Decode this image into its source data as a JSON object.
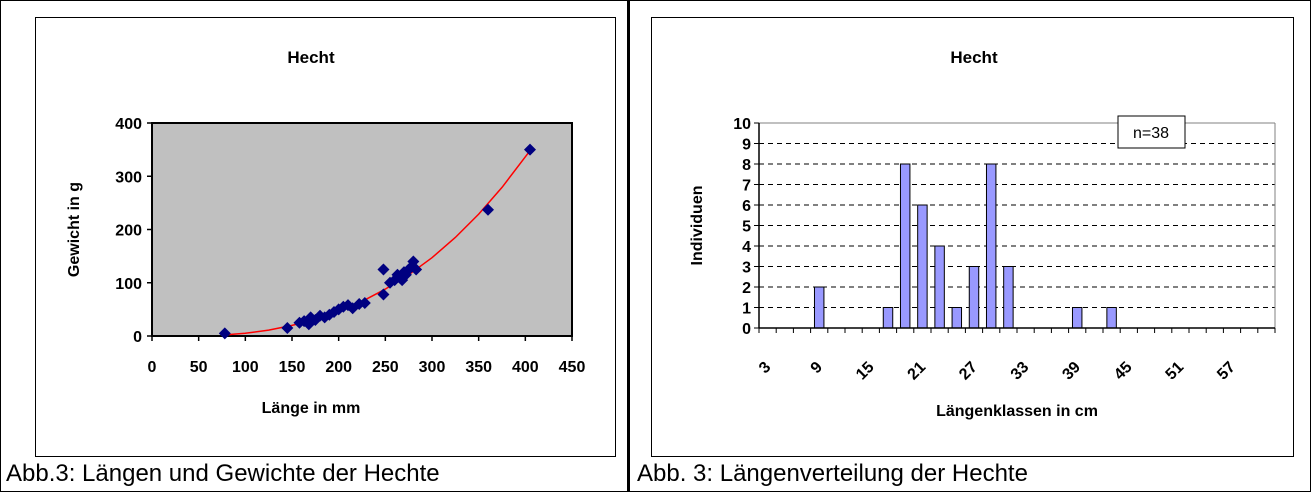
{
  "captions": {
    "left": "Abb.3: Längen und Gewichte der Hechte",
    "right": "Abb. 3: Längenverteilung der Hechte"
  },
  "chart_data": [
    {
      "type": "scatter",
      "title": "Hecht",
      "xlabel": "Länge in mm",
      "ylabel": "Gewicht in g",
      "xlim": [
        0,
        450
      ],
      "ylim": [
        0,
        400
      ],
      "xticks": [
        "0",
        "50",
        "100",
        "150",
        "200",
        "250",
        "300",
        "350",
        "400",
        "450"
      ],
      "yticks": [
        "0",
        "100",
        "200",
        "300",
        "400"
      ],
      "plot_background": "#c0c0c0",
      "marker_color": "#000080",
      "trend_color": "#ff0000",
      "trendline": "power",
      "points": [
        [
          78,
          5
        ],
        [
          145,
          15
        ],
        [
          158,
          25
        ],
        [
          163,
          28
        ],
        [
          168,
          22
        ],
        [
          170,
          35
        ],
        [
          175,
          30
        ],
        [
          180,
          38
        ],
        [
          185,
          35
        ],
        [
          190,
          40
        ],
        [
          195,
          45
        ],
        [
          200,
          50
        ],
        [
          205,
          55
        ],
        [
          210,
          58
        ],
        [
          215,
          52
        ],
        [
          222,
          60
        ],
        [
          228,
          62
        ],
        [
          248,
          125
        ],
        [
          248,
          78
        ],
        [
          255,
          100
        ],
        [
          260,
          105
        ],
        [
          263,
          115
        ],
        [
          265,
          110
        ],
        [
          268,
          105
        ],
        [
          270,
          120
        ],
        [
          272,
          115
        ],
        [
          275,
          125
        ],
        [
          278,
          130
        ],
        [
          280,
          140
        ],
        [
          283,
          125
        ],
        [
          360,
          237
        ],
        [
          405,
          350
        ]
      ],
      "trend": [
        [
          78,
          2
        ],
        [
          100,
          5
        ],
        [
          125,
          11
        ],
        [
          150,
          20
        ],
        [
          175,
          31
        ],
        [
          200,
          46
        ],
        [
          225,
          65
        ],
        [
          250,
          88
        ],
        [
          275,
          115
        ],
        [
          300,
          147
        ],
        [
          325,
          185
        ],
        [
          350,
          229
        ],
        [
          375,
          279
        ],
        [
          405,
          348
        ]
      ]
    },
    {
      "type": "bar",
      "title": "Hecht",
      "xlabel": "Längenklassen in cm",
      "ylabel": "Individuen",
      "annotation": "n=38",
      "ylim": [
        0,
        10
      ],
      "yticks": [
        "0",
        "1",
        "2",
        "3",
        "4",
        "5",
        "6",
        "7",
        "8",
        "9",
        "10"
      ],
      "xtick_labels": [
        "3",
        "9",
        "15",
        "21",
        "27",
        "33",
        "39",
        "45",
        "51",
        "57"
      ],
      "bar_color": "#9999ff",
      "classes": [
        3,
        5,
        7,
        9,
        11,
        13,
        15,
        17,
        19,
        21,
        23,
        25,
        27,
        29,
        31,
        33,
        35,
        37,
        39,
        41,
        43,
        45,
        47,
        49,
        51,
        53,
        55,
        57,
        59,
        61
      ],
      "values": [
        0,
        0,
        0,
        2,
        0,
        0,
        0,
        1,
        8,
        6,
        4,
        1,
        3,
        8,
        3,
        0,
        0,
        0,
        1,
        0,
        1,
        0,
        0,
        0,
        0,
        0,
        0,
        0,
        0,
        0
      ]
    }
  ]
}
